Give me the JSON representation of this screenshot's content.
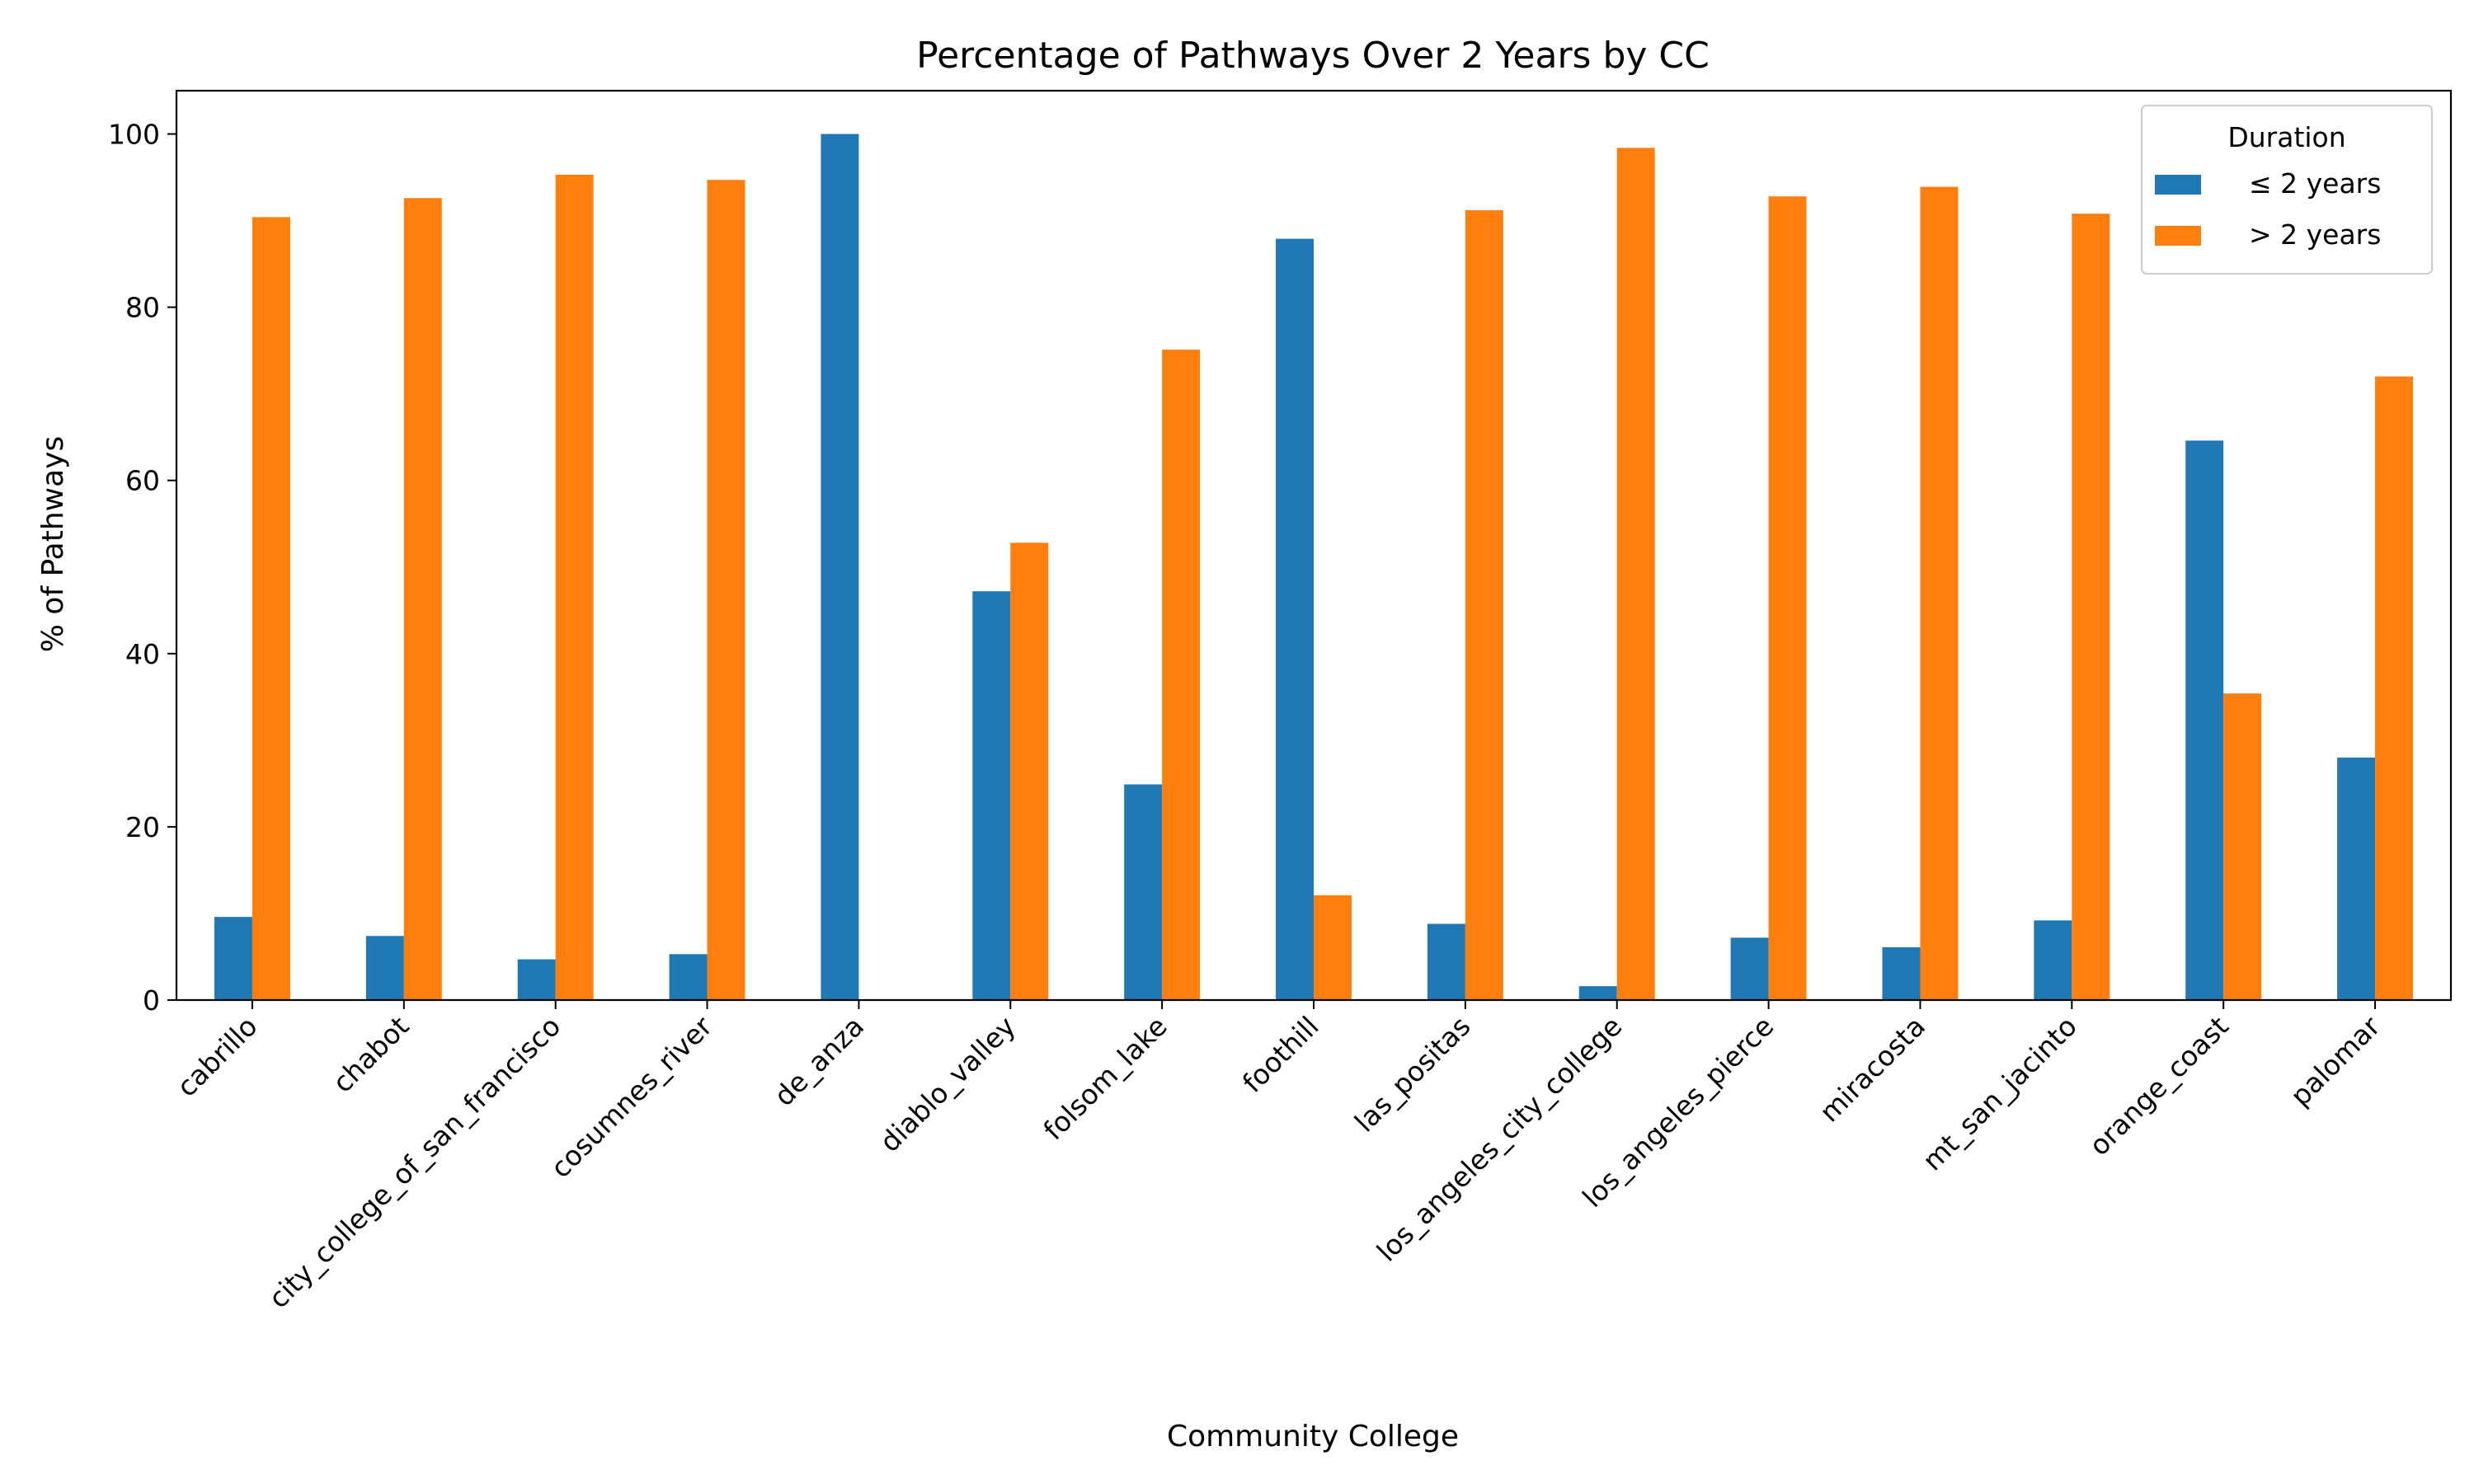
{
  "chart_data": {
    "type": "bar",
    "title": "Percentage of Pathways Over 2 Years by CC",
    "xlabel": "Community College",
    "ylabel": "% of Pathways",
    "ylim": [
      0,
      105
    ],
    "yticks": [
      0,
      20,
      40,
      60,
      80,
      100
    ],
    "grid": false,
    "legend": {
      "title": "Duration",
      "placement": "top-right"
    },
    "categories": [
      "cabrillo",
      "chabot",
      "city_college_of_san_francisco",
      "cosumnes_river",
      "de_anza",
      "diablo_valley",
      "folsom_lake",
      "foothill",
      "las_positas",
      "los_angeles_city_college",
      "los_angeles_pierce",
      "miracosta",
      "mt_san_jacinto",
      "orange_coast",
      "palomar"
    ],
    "series": [
      {
        "name": "≤ 2 years",
        "color": "#1f77b4",
        "values": [
          9.6,
          7.4,
          4.7,
          5.3,
          100,
          47.2,
          24.9,
          87.9,
          8.8,
          1.6,
          7.2,
          6.1,
          9.2,
          64.6,
          28.0
        ]
      },
      {
        "name": "> 2 years",
        "color": "#ff7f0e",
        "values": [
          90.4,
          92.6,
          95.3,
          94.7,
          0,
          52.8,
          75.1,
          12.1,
          91.2,
          98.4,
          92.8,
          93.9,
          90.8,
          35.4,
          72.0
        ]
      }
    ]
  }
}
